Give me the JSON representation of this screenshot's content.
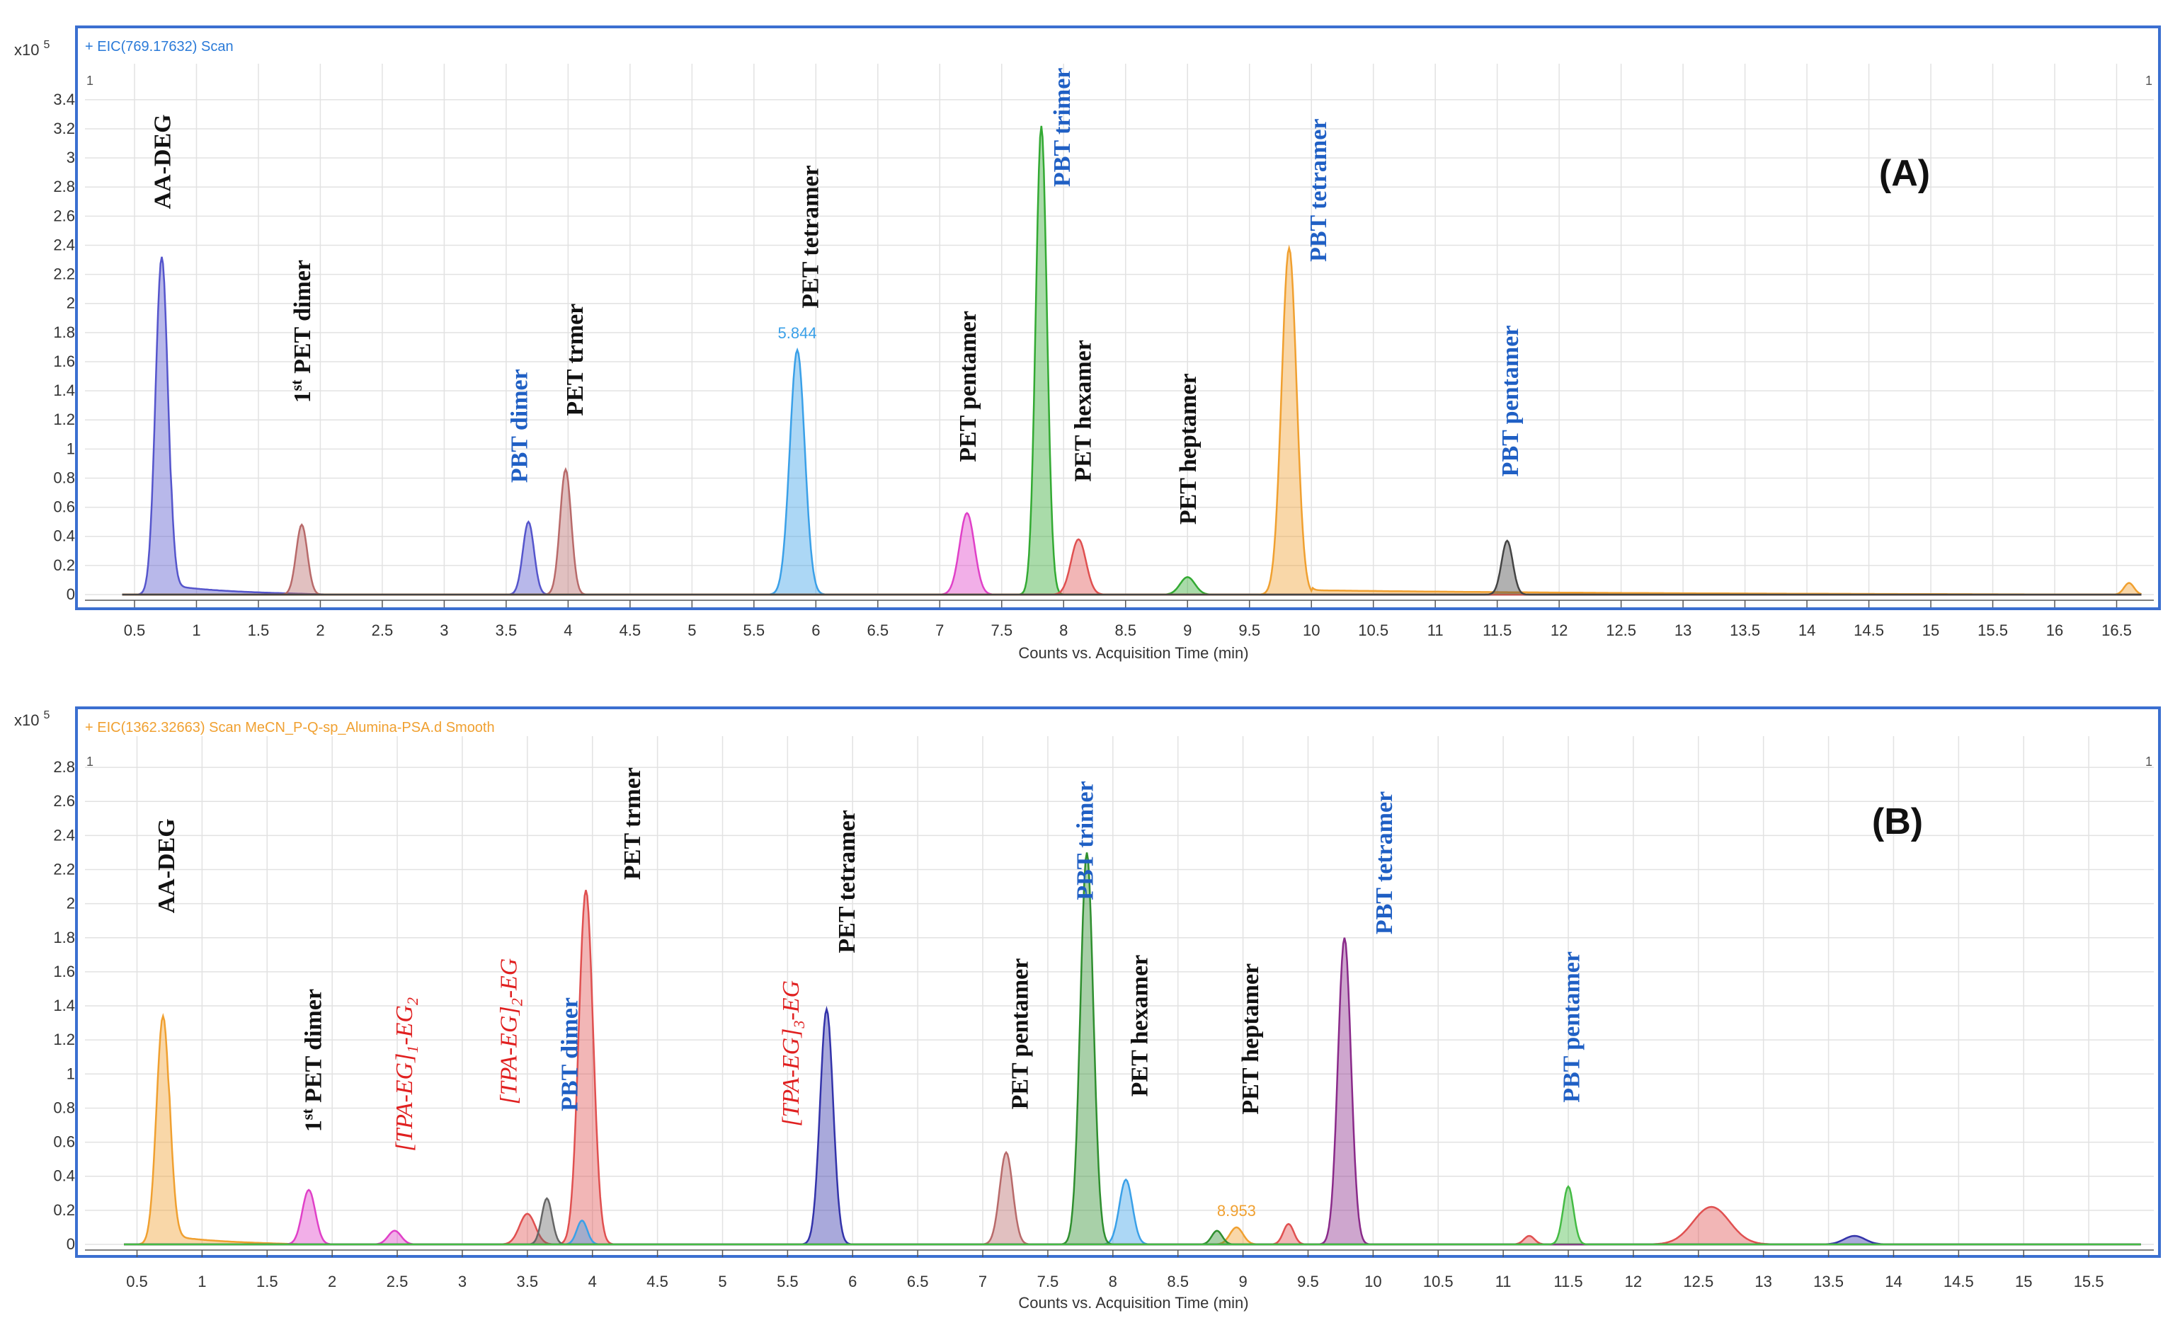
{
  "chart_data": [
    {
      "type": "area",
      "panel": "(A)",
      "legend": "+ EIC(769.17632) Scan",
      "legend_color": "#2a7ad8",
      "y_scale_text": "x10",
      "y_scale_exp": "5",
      "corner_left": "1",
      "corner_right": "1",
      "xlabel": "Counts vs. Acquisition Time (min)",
      "xlim": [
        0.1,
        16.8
      ],
      "ylim": [
        0,
        3.55
      ],
      "xticks": [
        "0.5",
        "1",
        "1.5",
        "2",
        "2.5",
        "3",
        "3.5",
        "4",
        "4.5",
        "5",
        "5.5",
        "6",
        "6.5",
        "7",
        "7.5",
        "8",
        "8.5",
        "9",
        "9.5",
        "10",
        "10.5",
        "11",
        "11.5",
        "12",
        "12.5",
        "13",
        "13.5",
        "14",
        "14.5",
        "15",
        "15.5",
        "16",
        "16.5"
      ],
      "yticks": [
        "0",
        "0.2",
        "0.4",
        "0.6",
        "0.8",
        "1",
        "1.2",
        "1.4",
        "1.6",
        "1.8",
        "2",
        "2.2",
        "2.4",
        "2.6",
        "2.8",
        "3",
        "3.2",
        "3.4"
      ],
      "series": [
        {
          "color": "#5555cc",
          "peaks": [
            {
              "x": 0.72,
              "h": 2.32,
              "w": 0.05
            }
          ],
          "tail": {
            "x0": 0.8,
            "x1": 2.1,
            "h": 0.06
          }
        },
        {
          "color": "#b86a6a",
          "peaks": [
            {
              "x": 1.85,
              "h": 0.48,
              "w": 0.045
            },
            {
              "x": 3.98,
              "h": 0.86,
              "w": 0.045
            }
          ]
        },
        {
          "color": "#5555cc",
          "peaks": [
            {
              "x": 3.68,
              "h": 0.5,
              "w": 0.045
            }
          ]
        },
        {
          "color": "#3aa0e8",
          "peaks": [
            {
              "x": 5.85,
              "h": 1.68,
              "w": 0.06
            }
          ]
        },
        {
          "color": "#e040c8",
          "peaks": [
            {
              "x": 7.22,
              "h": 0.56,
              "w": 0.06
            }
          ]
        },
        {
          "color": "#33aa33",
          "peaks": [
            {
              "x": 7.82,
              "h": 3.22,
              "w": 0.045
            },
            {
              "x": 9.0,
              "h": 0.12,
              "w": 0.06
            }
          ]
        },
        {
          "color": "#e05050",
          "peaks": [
            {
              "x": 8.12,
              "h": 0.38,
              "w": 0.06
            }
          ]
        },
        {
          "color": "#f0a030",
          "peaks": [
            {
              "x": 9.82,
              "h": 2.38,
              "w": 0.06
            },
            {
              "x": 16.6,
              "h": 0.08,
              "w": 0.04
            }
          ],
          "tail": {
            "x0": 10.0,
            "x1": 16.5,
            "h": 0.03
          }
        },
        {
          "color": "#444444",
          "peaks": [
            {
              "x": 11.58,
              "h": 0.37,
              "w": 0.045
            }
          ]
        }
      ],
      "peak_labels": [
        {
          "text": "AA-DEG",
          "x": 0.72,
          "y_top": 3.3,
          "color": "#111111"
        },
        {
          "text": "1st PET dimer",
          "x": 1.85,
          "y_top": 2.3,
          "color": "#111111",
          "sup": "st",
          "pre": "1",
          "post": " PET dimer"
        },
        {
          "text": "PBT dimer",
          "x": 3.6,
          "y_top": 1.55,
          "color": "#1f5fc4"
        },
        {
          "text": "PET trmer",
          "x": 4.05,
          "y_top": 2.0,
          "color": "#111111"
        },
        {
          "text": "PET tetramer",
          "x": 5.95,
          "y_top": 2.95,
          "color": "#111111"
        },
        {
          "text": "PET pentamer",
          "x": 7.22,
          "y_top": 1.95,
          "color": "#111111"
        },
        {
          "text": "PBT trimer",
          "x": 7.98,
          "y_top": 3.62,
          "color": "#1f5fc4"
        },
        {
          "text": "PET hexamer",
          "x": 8.15,
          "y_top": 1.75,
          "color": "#111111"
        },
        {
          "text": "PET heptamer",
          "x": 9.0,
          "y_top": 1.52,
          "color": "#111111"
        },
        {
          "text": "PBT tetramer",
          "x": 10.05,
          "y_top": 3.27,
          "color": "#1f5fc4"
        },
        {
          "text": "PBT pentamer",
          "x": 11.6,
          "y_top": 1.85,
          "color": "#1f5fc4"
        }
      ],
      "annotations": [
        {
          "text": "5.844",
          "x": 5.85,
          "y": 1.74,
          "color": "#3aa0e8"
        }
      ]
    },
    {
      "type": "area",
      "panel": "(B)",
      "legend": "+ EIC(1362.32663) Scan MeCN_P-Q-sp_Alumina-PSA.d  Smooth",
      "legend_color": "#f0a030",
      "y_scale_text": "x10",
      "y_scale_exp": "5",
      "corner_left": "1",
      "corner_right": "1",
      "xlabel": "Counts vs. Acquisition Time (min)",
      "xlim": [
        0.1,
        16.0
      ],
      "ylim": [
        0,
        2.9
      ],
      "xticks": [
        "0.5",
        "1",
        "1.5",
        "2",
        "2.5",
        "3",
        "3.5",
        "4",
        "4.5",
        "5",
        "5.5",
        "6",
        "6.5",
        "7",
        "7.5",
        "8",
        "8.5",
        "9",
        "9.5",
        "10",
        "10.5",
        "11",
        "11.5",
        "12",
        "12.5",
        "13",
        "13.5",
        "14",
        "14.5",
        "15",
        "15.5"
      ],
      "yticks": [
        "0",
        "0.2",
        "0.4",
        "0.6",
        "0.8",
        "1",
        "1.2",
        "1.4",
        "1.6",
        "1.8",
        "2",
        "2.2",
        "2.4",
        "2.6",
        "2.8"
      ],
      "series": [
        {
          "color": "#f0a030",
          "peaks": [
            {
              "x": 0.7,
              "h": 1.34,
              "w": 0.05
            },
            {
              "x": 8.95,
              "h": 0.1,
              "w": 0.05
            }
          ],
          "tail": {
            "x0": 0.75,
            "x1": 1.8,
            "h": 0.05
          }
        },
        {
          "color": "#e040c8",
          "peaks": [
            {
              "x": 1.82,
              "h": 0.32,
              "w": 0.05
            },
            {
              "x": 2.48,
              "h": 0.08,
              "w": 0.05
            }
          ]
        },
        {
          "color": "#e05050",
          "peaks": [
            {
              "x": 3.5,
              "h": 0.18,
              "w": 0.06
            },
            {
              "x": 3.95,
              "h": 2.08,
              "w": 0.055
            },
            {
              "x": 9.35,
              "h": 0.12,
              "w": 0.04
            },
            {
              "x": 11.2,
              "h": 0.05,
              "w": 0.04
            },
            {
              "x": 12.6,
              "h": 0.22,
              "w": 0.14
            }
          ]
        },
        {
          "color": "#666666",
          "peaks": [
            {
              "x": 3.65,
              "h": 0.27,
              "w": 0.04
            }
          ]
        },
        {
          "color": "#3aa0e8",
          "peaks": [
            {
              "x": 3.92,
              "h": 0.14,
              "w": 0.04
            },
            {
              "x": 8.1,
              "h": 0.38,
              "w": 0.05
            }
          ]
        },
        {
          "color": "#3333aa",
          "peaks": [
            {
              "x": 5.8,
              "h": 1.38,
              "w": 0.05
            },
            {
              "x": 13.7,
              "h": 0.05,
              "w": 0.08
            }
          ]
        },
        {
          "color": "#b86a6a",
          "peaks": [
            {
              "x": 7.18,
              "h": 0.54,
              "w": 0.05
            }
          ]
        },
        {
          "color": "#2f8f2f",
          "peaks": [
            {
              "x": 7.8,
              "h": 2.3,
              "w": 0.05
            },
            {
              "x": 8.8,
              "h": 0.08,
              "w": 0.04
            }
          ]
        },
        {
          "color": "#8a2a8a",
          "peaks": [
            {
              "x": 9.78,
              "h": 1.8,
              "w": 0.05
            }
          ]
        },
        {
          "color": "#44bb44",
          "peaks": [
            {
              "x": 11.5,
              "h": 0.34,
              "w": 0.04
            }
          ]
        }
      ],
      "peak_labels": [
        {
          "text": "AA-DEG",
          "x": 0.72,
          "y_top": 2.5,
          "color": "#111111"
        },
        {
          "text": "1st PET dimer",
          "x": 1.85,
          "y_top": 1.5,
          "color": "#111111",
          "sup": "st",
          "pre": "1",
          "post": " PET dimer"
        },
        {
          "text": "[TPA-EG]1-EG2",
          "x": 2.55,
          "y_top": 1.45,
          "color": "#e02020",
          "italic": true,
          "parts": [
            "[TPA-EG]",
            "1",
            "-EG",
            "2"
          ]
        },
        {
          "text": "[TPA-EG]2-EG",
          "x": 3.35,
          "y_top": 1.68,
          "color": "#e02020",
          "italic": true,
          "parts": [
            "[TPA-EG]",
            "2",
            "-EG",
            ""
          ]
        },
        {
          "text": "PBT dimer",
          "x": 3.82,
          "y_top": 1.45,
          "color": "#1f5fc4"
        },
        {
          "text": "PET trmer",
          "x": 4.3,
          "y_top": 2.8,
          "color": "#111111"
        },
        {
          "text": "[TPA-EG]3-EG",
          "x": 5.52,
          "y_top": 1.55,
          "color": "#e02020",
          "italic": true,
          "parts": [
            "[TPA-EG]",
            "3",
            "-EG",
            ""
          ]
        },
        {
          "text": "PET tetramer",
          "x": 5.95,
          "y_top": 2.55,
          "color": "#111111"
        },
        {
          "text": "PET pentamer",
          "x": 7.28,
          "y_top": 1.68,
          "color": "#111111"
        },
        {
          "text": "PBT trimer",
          "x": 7.78,
          "y_top": 2.72,
          "color": "#1f5fc4"
        },
        {
          "text": "PET hexamer",
          "x": 8.2,
          "y_top": 1.7,
          "color": "#111111"
        },
        {
          "text": "PET heptamer",
          "x": 9.05,
          "y_top": 1.65,
          "color": "#111111"
        },
        {
          "text": "PBT tetramer",
          "x": 10.08,
          "y_top": 2.66,
          "color": "#1f5fc4"
        },
        {
          "text": "PBT pentamer",
          "x": 11.52,
          "y_top": 1.72,
          "color": "#1f5fc4"
        }
      ],
      "annotations": [
        {
          "text": "8.953",
          "x": 8.95,
          "y": 0.15,
          "color": "#f0a030"
        }
      ]
    }
  ]
}
